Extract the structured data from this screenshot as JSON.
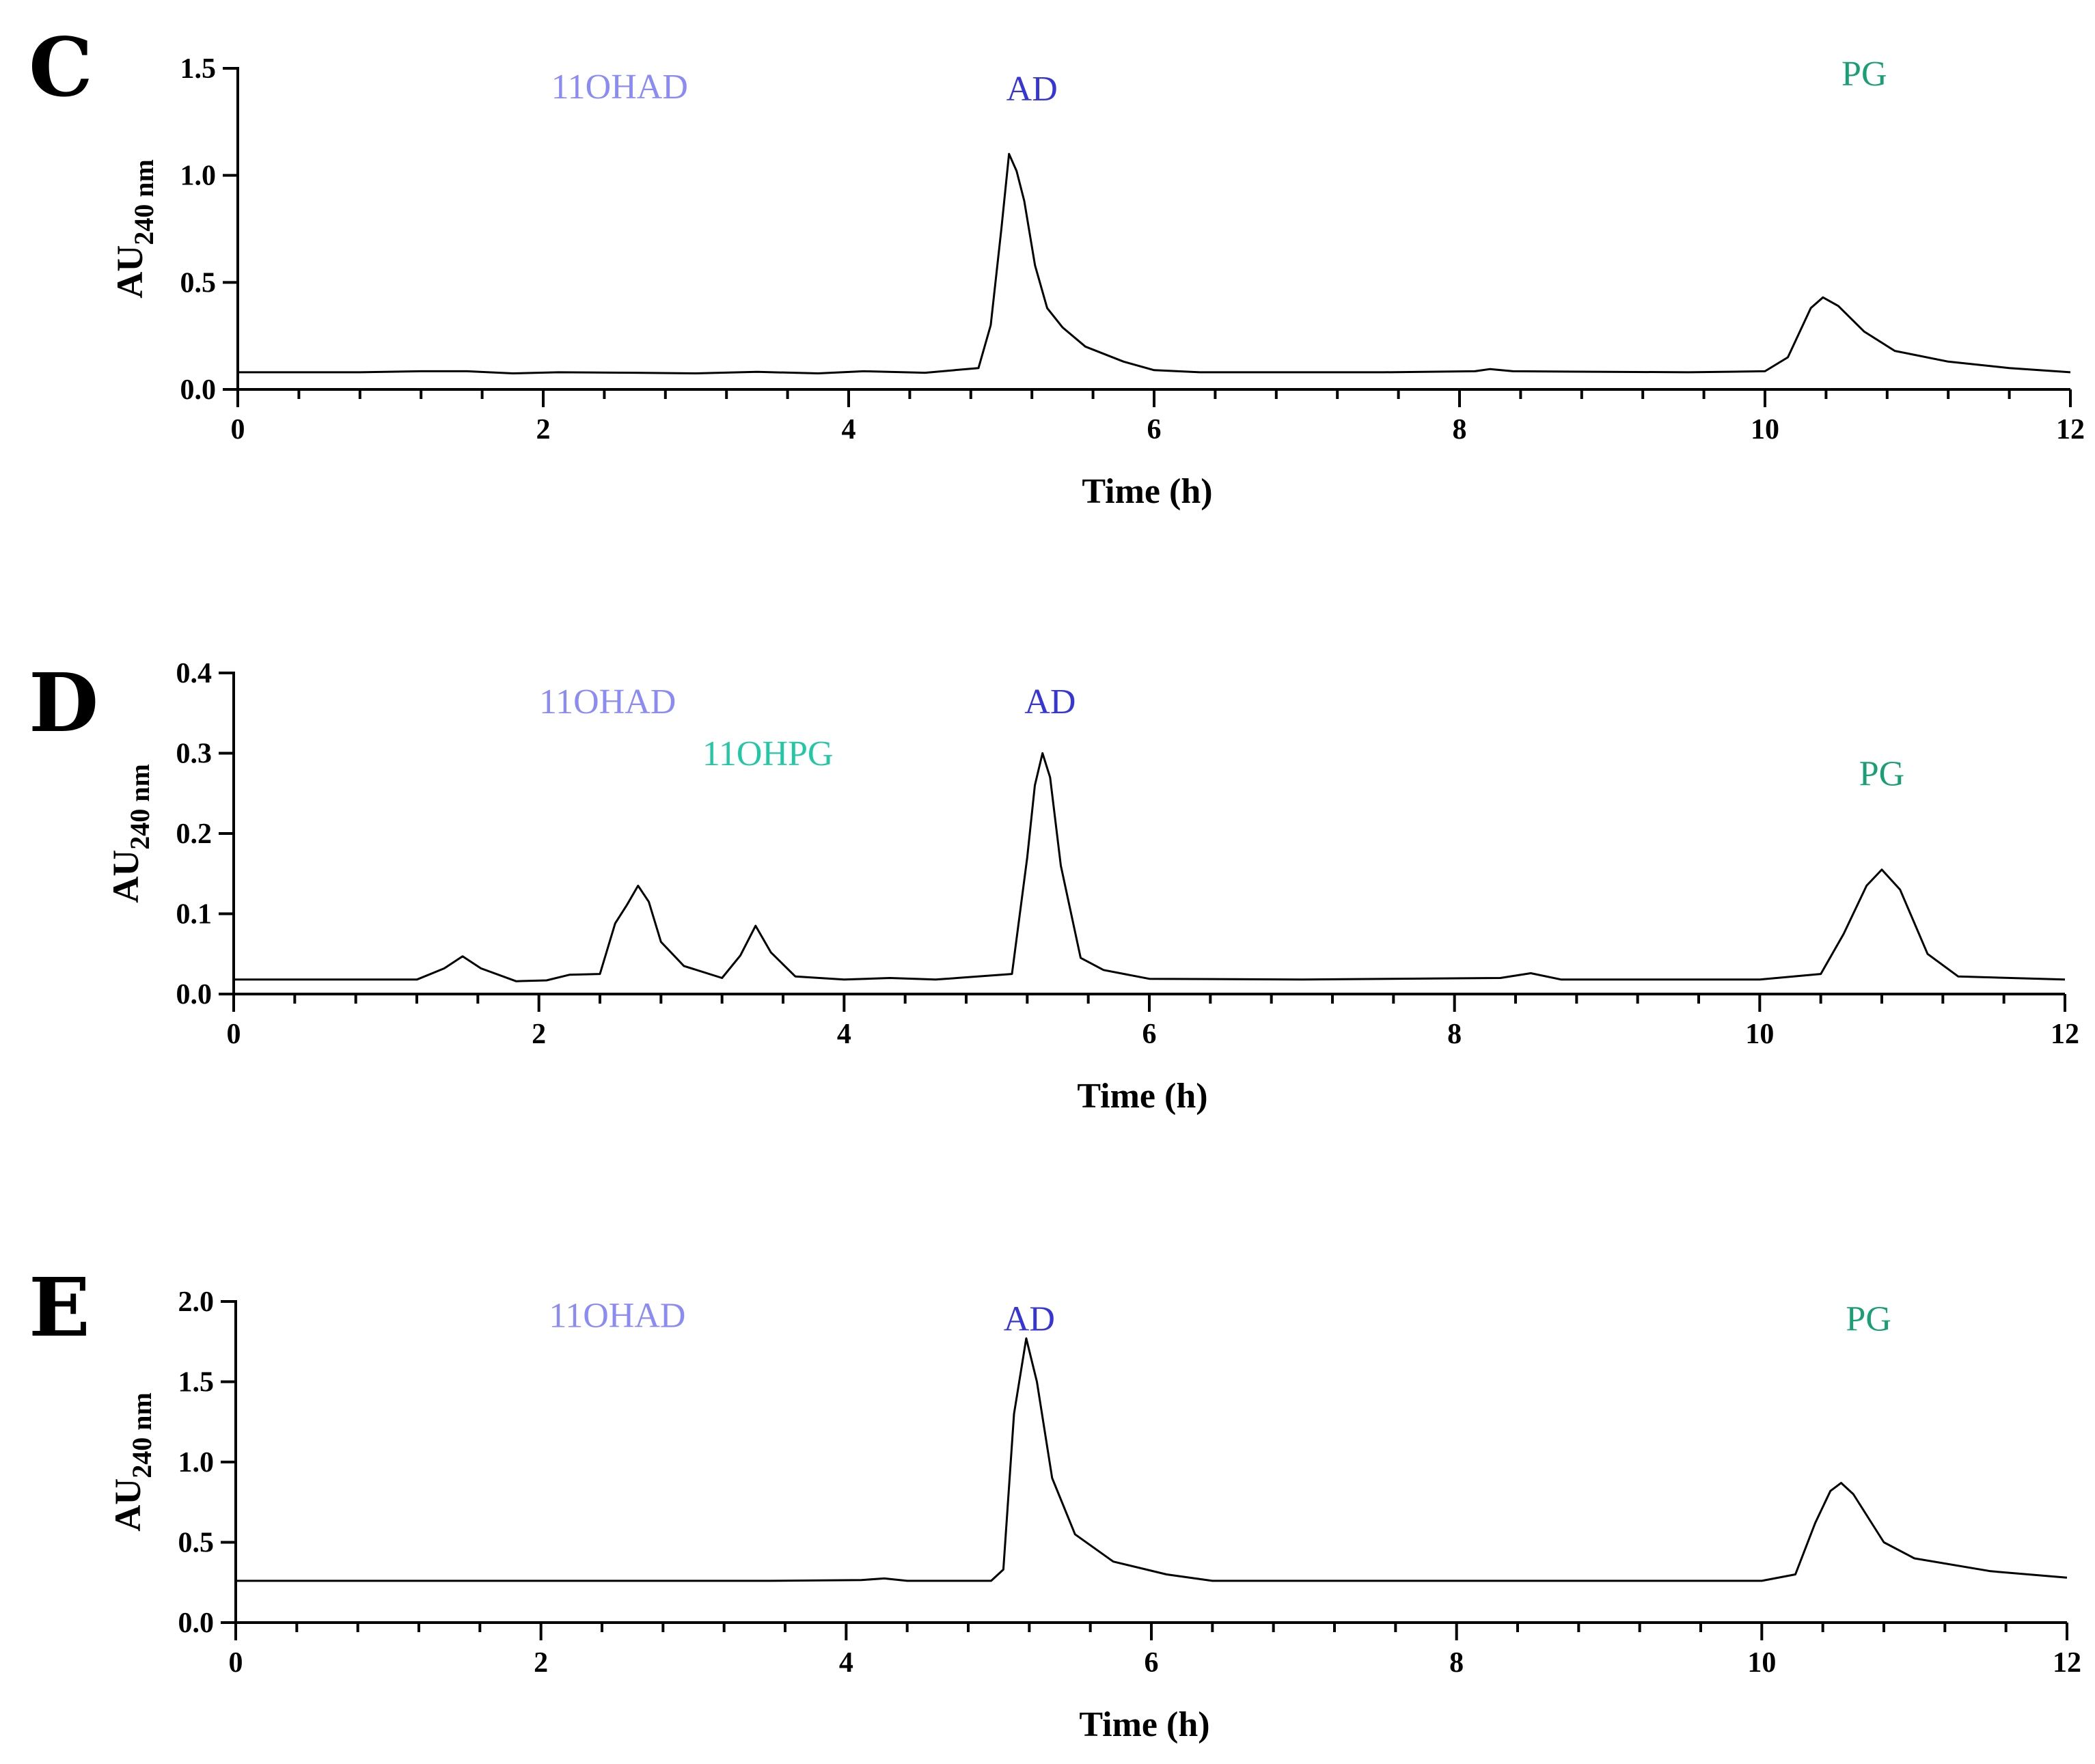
{
  "colors": {
    "11OHAD": "#8b8bf5",
    "AD": "#3535d8",
    "PG": "#1a9e75",
    "11OHPG": "#22c7a4"
  },
  "chart_data": [
    {
      "type": "line",
      "panel": "C",
      "xlabel": "Time (h)",
      "ylabel": "AU",
      "ylabel_sub": "240 nm",
      "xlim": [
        0,
        12
      ],
      "ylim": [
        0,
        1.5
      ],
      "xticks": [
        0,
        2,
        4,
        6,
        8,
        10,
        12
      ],
      "yticks": [
        0.0,
        0.5,
        1.0,
        1.5
      ],
      "ytick_labels": [
        "0.0",
        "0.5",
        "1.0",
        "1.5"
      ],
      "peak_labels": [
        {
          "text": "11OHAD",
          "x": 2.5,
          "y": 1.36,
          "color": "#8b8bf5"
        },
        {
          "text": "AD",
          "x": 5.2,
          "y": 1.35,
          "color": "#3535d8"
        },
        {
          "text": "PG",
          "x": 10.65,
          "y": 1.42,
          "color": "#1a9e75"
        }
      ],
      "series": [
        {
          "name": "chromatogram",
          "x": [
            0,
            0.8,
            1.2,
            1.5,
            1.8,
            2.1,
            2.6,
            3.0,
            3.4,
            3.8,
            4.1,
            4.5,
            4.85,
            4.93,
            5.0,
            5.05,
            5.1,
            5.15,
            5.22,
            5.3,
            5.4,
            5.55,
            5.8,
            6.0,
            6.3,
            7.5,
            8.1,
            8.2,
            8.35,
            9.5,
            10.0,
            10.15,
            10.3,
            10.38,
            10.48,
            10.65,
            10.85,
            11.2,
            11.6,
            12
          ],
          "y": [
            0.08,
            0.08,
            0.085,
            0.085,
            0.075,
            0.08,
            0.078,
            0.075,
            0.082,
            0.075,
            0.085,
            0.078,
            0.1,
            0.3,
            0.75,
            1.1,
            1.02,
            0.88,
            0.58,
            0.38,
            0.29,
            0.2,
            0.13,
            0.09,
            0.08,
            0.08,
            0.085,
            0.095,
            0.085,
            0.08,
            0.085,
            0.15,
            0.38,
            0.43,
            0.39,
            0.27,
            0.18,
            0.13,
            0.1,
            0.08
          ]
        }
      ]
    },
    {
      "type": "line",
      "panel": "D",
      "xlabel": "Time (h)",
      "ylabel": "AU",
      "ylabel_sub": "240 nm",
      "xlim": [
        0,
        12
      ],
      "ylim": [
        0,
        0.4
      ],
      "xticks": [
        0,
        2,
        4,
        6,
        8,
        10,
        12
      ],
      "yticks": [
        0.0,
        0.1,
        0.2,
        0.3,
        0.4
      ],
      "ytick_labels": [
        "0.0",
        "0.1",
        "0.2",
        "0.3",
        "0.4"
      ],
      "peak_labels": [
        {
          "text": "11OHAD",
          "x": 2.45,
          "y": 0.35,
          "color": "#8b8bf5"
        },
        {
          "text": "11OHPG",
          "x": 3.5,
          "y": 0.285,
          "color": "#22c7a4"
        },
        {
          "text": "AD",
          "x": 5.35,
          "y": 0.35,
          "color": "#3535d8"
        },
        {
          "text": "PG",
          "x": 10.8,
          "y": 0.26,
          "color": "#1a9e75"
        }
      ],
      "series": [
        {
          "name": "chromatogram",
          "x": [
            0,
            1.2,
            1.38,
            1.5,
            1.62,
            1.85,
            2.05,
            2.2,
            2.4,
            2.5,
            2.58,
            2.65,
            2.72,
            2.8,
            2.95,
            3.2,
            3.32,
            3.42,
            3.52,
            3.68,
            4.0,
            4.3,
            4.6,
            5.1,
            5.2,
            5.25,
            5.3,
            5.35,
            5.42,
            5.55,
            5.7,
            6.0,
            7.0,
            8.3,
            8.5,
            8.7,
            10.0,
            10.4,
            10.55,
            10.7,
            10.8,
            10.92,
            11.1,
            11.3,
            12.0
          ],
          "y": [
            0.018,
            0.018,
            0.032,
            0.047,
            0.032,
            0.016,
            0.017,
            0.024,
            0.025,
            0.088,
            0.112,
            0.135,
            0.115,
            0.065,
            0.035,
            0.02,
            0.048,
            0.085,
            0.052,
            0.022,
            0.018,
            0.02,
            0.018,
            0.025,
            0.17,
            0.26,
            0.3,
            0.27,
            0.16,
            0.045,
            0.03,
            0.019,
            0.018,
            0.02,
            0.026,
            0.018,
            0.018,
            0.025,
            0.075,
            0.135,
            0.155,
            0.13,
            0.05,
            0.022,
            0.018
          ]
        }
      ]
    },
    {
      "type": "line",
      "panel": "E",
      "xlabel": "Time (h)",
      "ylabel": "AU",
      "ylabel_sub": "240 nm",
      "xlim": [
        0,
        12
      ],
      "ylim": [
        0,
        2.0
      ],
      "xticks": [
        0,
        2,
        4,
        6,
        8,
        10,
        12
      ],
      "yticks": [
        0.0,
        0.5,
        1.0,
        1.5,
        2.0
      ],
      "ytick_labels": [
        "0.0",
        "0.5",
        "1.0",
        "1.5",
        "2.0"
      ],
      "peak_labels": [
        {
          "text": "11OHAD",
          "x": 2.5,
          "y": 1.84,
          "color": "#8b8bf5"
        },
        {
          "text": "AD",
          "x": 5.2,
          "y": 1.82,
          "color": "#3535d8"
        },
        {
          "text": "PG",
          "x": 10.7,
          "y": 1.82,
          "color": "#1a9e75"
        }
      ],
      "series": [
        {
          "name": "chromatogram",
          "x": [
            0,
            2.0,
            3.5,
            4.1,
            4.25,
            4.4,
            4.95,
            5.03,
            5.1,
            5.18,
            5.25,
            5.35,
            5.5,
            5.75,
            6.1,
            6.4,
            8.0,
            10.0,
            10.22,
            10.35,
            10.45,
            10.52,
            10.6,
            10.8,
            11.0,
            11.5,
            12.0
          ],
          "y": [
            0.26,
            0.26,
            0.26,
            0.265,
            0.275,
            0.26,
            0.26,
            0.33,
            1.3,
            1.77,
            1.5,
            0.9,
            0.55,
            0.38,
            0.3,
            0.26,
            0.26,
            0.26,
            0.3,
            0.62,
            0.82,
            0.87,
            0.8,
            0.5,
            0.4,
            0.32,
            0.28
          ]
        }
      ]
    }
  ]
}
